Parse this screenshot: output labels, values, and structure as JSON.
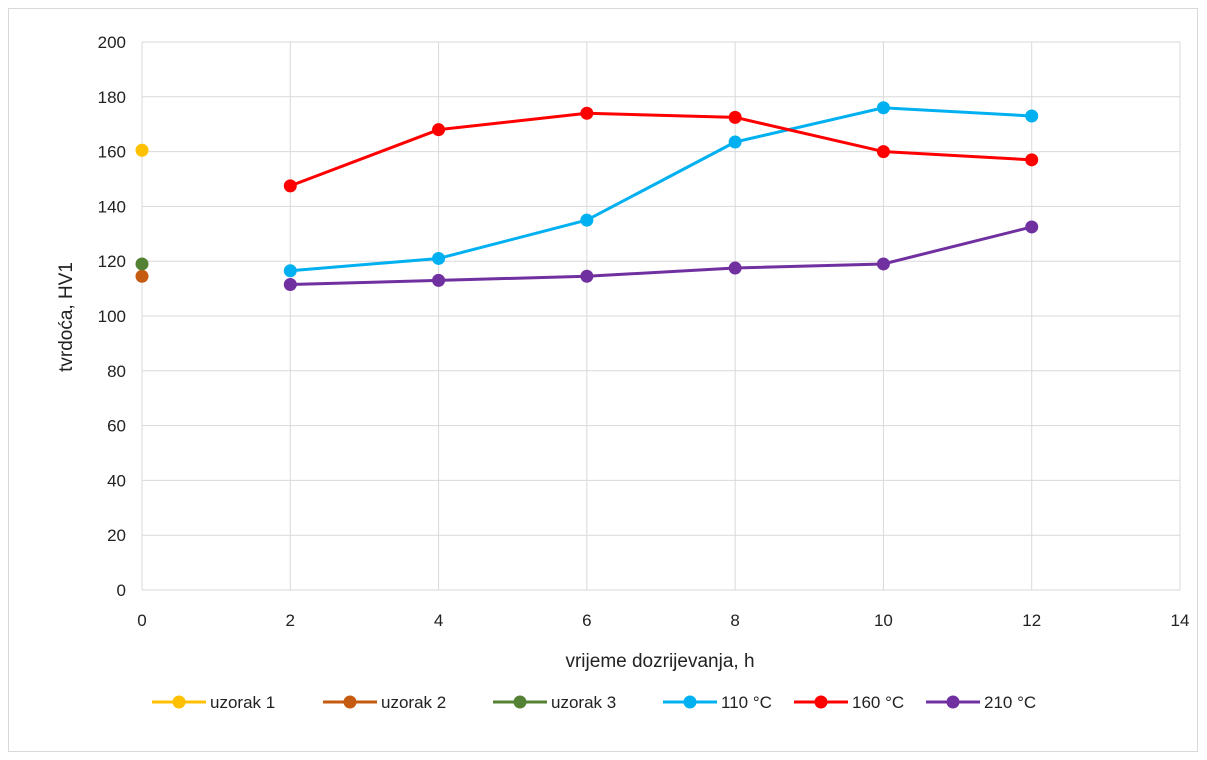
{
  "chart_data": {
    "type": "line",
    "title": "",
    "xlabel": "vrijeme dozrijevanja, h",
    "ylabel": "tvrdoća, HV1",
    "xlim": [
      0,
      14
    ],
    "ylim": [
      0,
      200
    ],
    "x_ticks": [
      "0",
      "2",
      "4",
      "6",
      "8",
      "10",
      "12",
      "14"
    ],
    "y_ticks": [
      "0",
      "20",
      "40",
      "60",
      "80",
      "100",
      "120",
      "140",
      "160",
      "180",
      "200"
    ],
    "grid": true,
    "legend_position": "bottom",
    "series": [
      {
        "name": "uzorak 1",
        "color": "#FFC000",
        "x": [
          0
        ],
        "y": [
          160.5
        ]
      },
      {
        "name": "uzorak 2",
        "color": "#C55A11",
        "x": [
          0
        ],
        "y": [
          114.5
        ]
      },
      {
        "name": "uzorak 3",
        "color": "#548235",
        "x": [
          0
        ],
        "y": [
          119
        ]
      },
      {
        "name": "110 °C",
        "color": "#00B0F0",
        "x": [
          2,
          4,
          6,
          8,
          10,
          12
        ],
        "y": [
          116.5,
          121,
          135,
          163.5,
          176,
          173
        ]
      },
      {
        "name": "160 °C",
        "color": "#FF0000",
        "x": [
          2,
          4,
          6,
          8,
          10,
          12
        ],
        "y": [
          147.5,
          168,
          174,
          172.5,
          160,
          157
        ]
      },
      {
        "name": "210 °C",
        "color": "#7030A0",
        "x": [
          2,
          4,
          6,
          8,
          10,
          12
        ],
        "y": [
          111.5,
          113,
          114.5,
          117.5,
          119,
          132.5
        ]
      }
    ]
  }
}
